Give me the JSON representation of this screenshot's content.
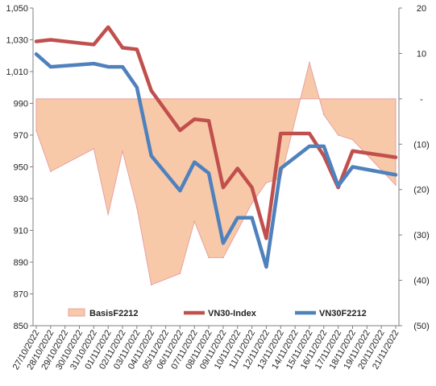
{
  "chart_data": {
    "type": "line",
    "title": "",
    "categories": [
      "27/10/2022",
      "28/10/2022",
      "29/10/2022",
      "30/10/2022",
      "31/10/2022",
      "01/11/2022",
      "02/11/2022",
      "03/11/2022",
      "04/11/2022",
      "05/11/2022",
      "06/11/2022",
      "07/11/2022",
      "08/11/2022",
      "09/11/2022",
      "10/11/2022",
      "11/11/2022",
      "12/11/2022",
      "13/11/2022",
      "14/11/2022",
      "15/11/2022",
      "16/11/2022",
      "17/11/2022",
      "18/11/2022",
      "19/11/2022",
      "20/11/2022",
      "21/11/2022"
    ],
    "x": [
      0,
      1,
      4,
      5,
      6,
      7,
      8,
      10,
      11,
      12,
      13,
      14,
      15,
      16,
      17,
      19,
      20,
      21,
      22,
      25
    ],
    "x_index_labels": [
      "27/10/2022",
      "28/10/2022",
      "31/10/2022",
      "01/11/2022",
      "02/11/2022",
      "03/11/2022",
      "04/11/2022",
      "06/11/2022",
      "07/11/2022",
      "08/11/2022",
      "09/11/2022",
      "10/11/2022",
      "11/11/2022",
      "12/11/2022",
      "13/11/2022",
      "15/11/2022",
      "16/11/2022",
      "17/11/2022",
      "18/11/2022",
      "21/11/2022"
    ],
    "series": [
      {
        "name": "BasisF2212",
        "type": "area",
        "axis": "right",
        "color": "#f8c9a9",
        "stroke": "#e8a0a0",
        "values": [
          -7,
          -16,
          -11,
          -25.5,
          -11.5,
          -24,
          -41,
          -38.5,
          -27,
          -35,
          -35,
          -29,
          -23,
          -18.5,
          -17.5,
          8,
          -3.5,
          -8,
          -9,
          -19
        ]
      },
      {
        "name": "VN30-Index",
        "type": "line",
        "axis": "left",
        "color": "#c0504d",
        "values": [
          1029,
          1030,
          1027,
          1038,
          1025,
          1024,
          998,
          973,
          980,
          979,
          937,
          949,
          937,
          905,
          971,
          971,
          957,
          937,
          960,
          956
        ]
      },
      {
        "name": "VN30F2212",
        "type": "line",
        "axis": "left",
        "color": "#4f81bd",
        "values": [
          1021,
          1013,
          1015,
          1013,
          1013,
          1000,
          957,
          935,
          953,
          946,
          902,
          918,
          918,
          887,
          949,
          963,
          963,
          938,
          950,
          945
        ]
      }
    ],
    "left_axis": {
      "ylim": [
        850,
        1050
      ],
      "ticks": [
        "850",
        "870",
        "890",
        "910",
        "930",
        "950",
        "970",
        "990",
        "1,010",
        "1,030",
        "1,050"
      ]
    },
    "right_axis": {
      "ylim": [
        -50,
        20
      ],
      "ticks": [
        "(50)",
        "(40)",
        "(30)",
        "(20)",
        "(10)",
        "-",
        "10",
        "20"
      ]
    },
    "legend": {
      "position": "bottom-inside",
      "items": [
        "BasisF2212",
        "VN30-Index",
        "VN30F2212"
      ]
    },
    "grid": false
  }
}
